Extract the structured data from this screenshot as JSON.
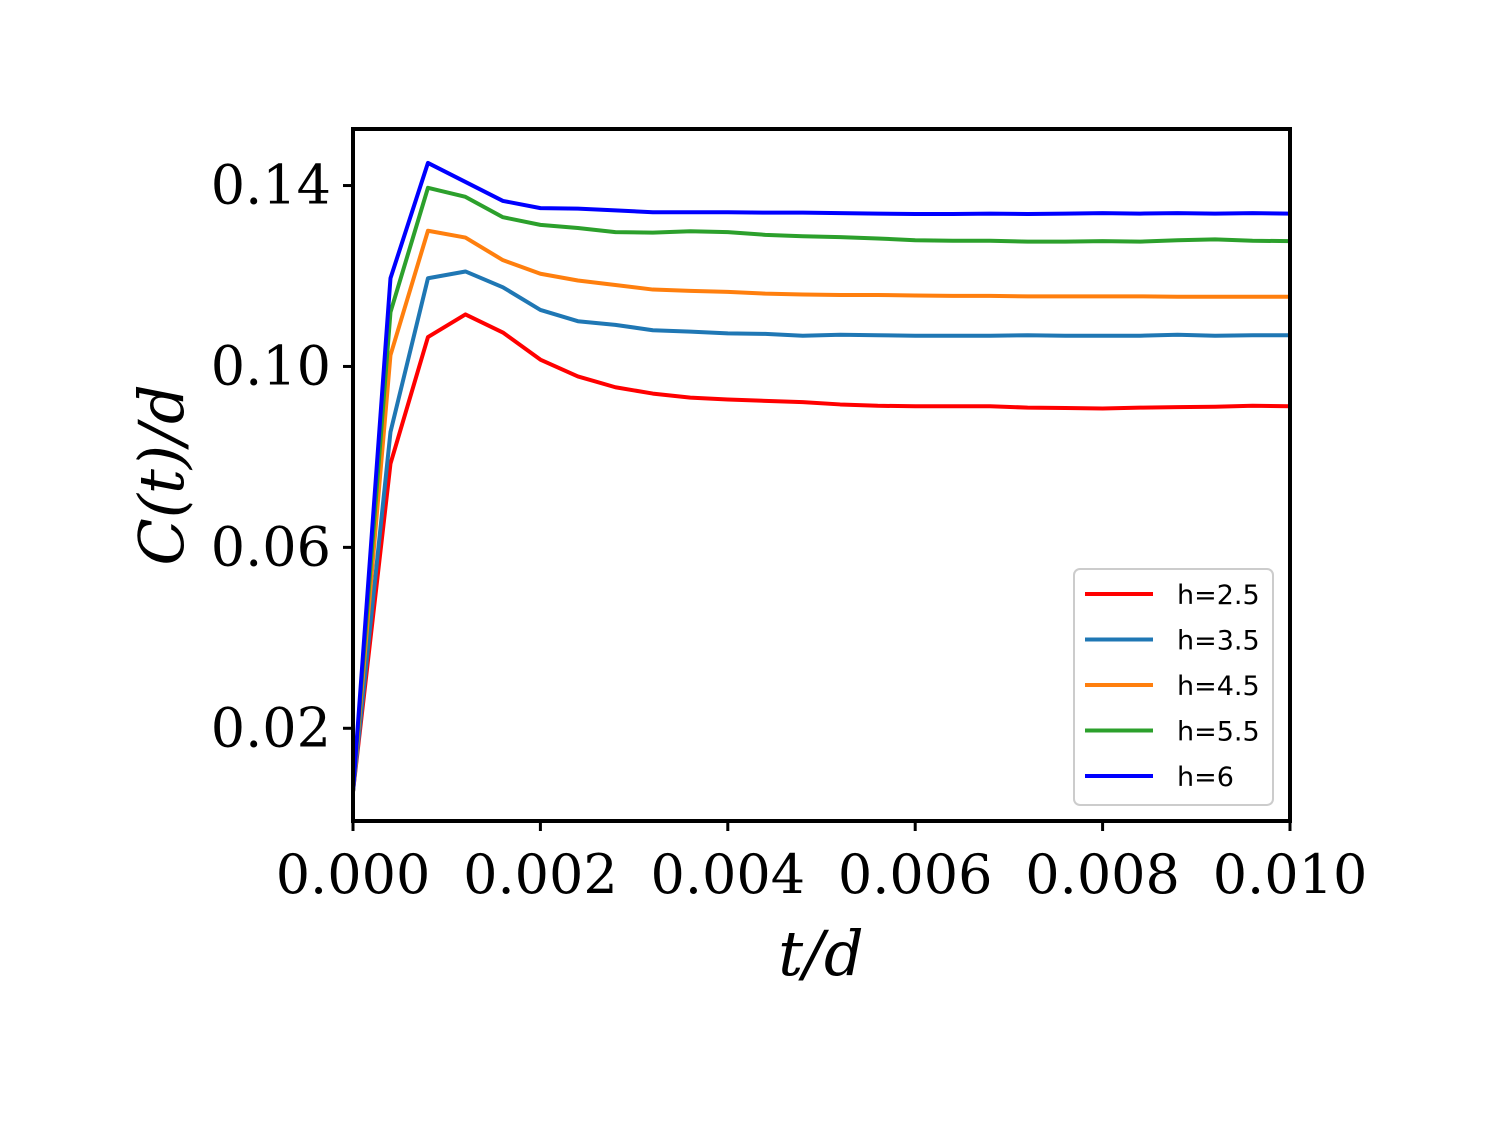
{
  "chart_data": {
    "type": "line",
    "xlabel": "t/d",
    "ylabel": "C(t)/d",
    "xlim": [
      0.0,
      0.01
    ],
    "ylim": [
      -0.0005,
      0.1525
    ],
    "x_ticks": [
      0.0,
      0.002,
      0.004,
      0.006,
      0.008,
      0.01
    ],
    "x_tick_labels": [
      "0.000",
      "0.002",
      "0.004",
      "0.006",
      "0.008",
      "0.010"
    ],
    "y_ticks": [
      0.02,
      0.06,
      0.1,
      0.14
    ],
    "y_tick_labels": [
      "0.02",
      "0.06",
      "0.10",
      "0.14"
    ],
    "grid": false,
    "legend_position": "lower-right",
    "x": [
      0.0,
      0.0004,
      0.0008,
      0.0012,
      0.0016,
      0.002,
      0.0024,
      0.0028,
      0.0032,
      0.0036,
      0.004,
      0.0044,
      0.0048,
      0.0052,
      0.0056,
      0.006,
      0.0064,
      0.0068,
      0.0072,
      0.0076,
      0.008,
      0.0084,
      0.0088,
      0.0092,
      0.0096,
      0.01
    ],
    "series": [
      {
        "name": "h=2.5",
        "color": "#ff0000",
        "values": [
          0.006,
          0.0785,
          0.1065,
          0.1115,
          0.1075,
          0.1015,
          0.0978,
          0.0954,
          0.094,
          0.0931,
          0.0927,
          0.0924,
          0.0921,
          0.0916,
          0.0913,
          0.0912,
          0.0912,
          0.0912,
          0.0909,
          0.0908,
          0.0907,
          0.0909,
          0.091,
          0.0911,
          0.0913,
          0.0912
        ]
      },
      {
        "name": "h=3.5",
        "color": "#1f77b4",
        "values": [
          0.006,
          0.0855,
          0.1195,
          0.121,
          0.1175,
          0.1125,
          0.11,
          0.1092,
          0.108,
          0.1077,
          0.1073,
          0.1072,
          0.1068,
          0.107,
          0.1069,
          0.1068,
          0.1068,
          0.1068,
          0.1069,
          0.1068,
          0.1068,
          0.1068,
          0.107,
          0.1068,
          0.1069,
          0.1069
        ]
      },
      {
        "name": "h=4.5",
        "color": "#ff7f0e",
        "values": [
          0.006,
          0.1025,
          0.13,
          0.1285,
          0.1235,
          0.1205,
          0.119,
          0.118,
          0.117,
          0.1167,
          0.1165,
          0.1161,
          0.1159,
          0.1158,
          0.1158,
          0.1157,
          0.1156,
          0.1156,
          0.1155,
          0.1155,
          0.1155,
          0.1155,
          0.1154,
          0.1154,
          0.1154,
          0.1154
        ]
      },
      {
        "name": "h=5.5",
        "color": "#2ca02c",
        "values": [
          0.006,
          0.112,
          0.1395,
          0.1375,
          0.133,
          0.1313,
          0.1306,
          0.1297,
          0.1296,
          0.1299,
          0.1297,
          0.1291,
          0.1288,
          0.1286,
          0.1283,
          0.1279,
          0.1278,
          0.1278,
          0.1276,
          0.1276,
          0.1277,
          0.1276,
          0.1279,
          0.1281,
          0.1278,
          0.1277
        ]
      },
      {
        "name": "h=6",
        "color": "#0000ff",
        "values": [
          0.006,
          0.1195,
          0.145,
          0.1408,
          0.1366,
          0.135,
          0.1349,
          0.1345,
          0.1341,
          0.1341,
          0.1341,
          0.134,
          0.134,
          0.1339,
          0.1338,
          0.1337,
          0.1337,
          0.1338,
          0.1337,
          0.1338,
          0.1339,
          0.1338,
          0.1339,
          0.1338,
          0.1339,
          0.1338
        ]
      }
    ]
  }
}
